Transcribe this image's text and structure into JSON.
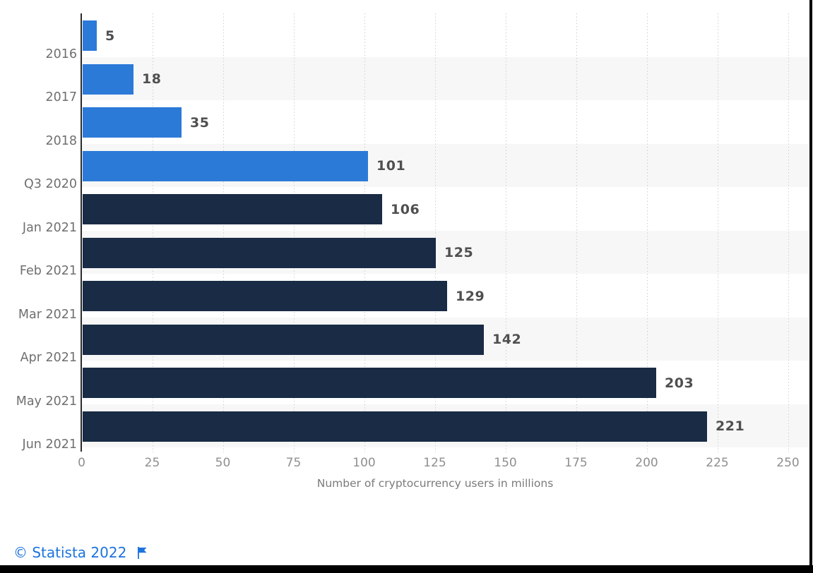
{
  "chart_data": {
    "type": "bar",
    "orientation": "horizontal",
    "title": "",
    "xlabel": "Number of cryptocurrency users in millions",
    "ylabel": "",
    "categories": [
      "2016",
      "2017",
      "2018",
      "Q3 2020",
      "Jan 2021",
      "Feb 2021",
      "Mar 2021",
      "Apr 2021",
      "May 2021",
      "Jun 2021"
    ],
    "values": [
      5,
      18,
      35,
      101,
      106,
      125,
      129,
      142,
      203,
      221
    ],
    "bar_colors": [
      "#2C7AD8",
      "#2C7AD8",
      "#2C7AD8",
      "#2C7AD8",
      "#192B45",
      "#192B45",
      "#192B45",
      "#192B45",
      "#192B45",
      "#192B45"
    ],
    "xlim": [
      0,
      250
    ],
    "x_ticks": [
      0,
      25,
      50,
      75,
      100,
      125,
      150,
      175,
      200,
      225,
      250
    ],
    "gridlines": "vertical-dotted",
    "row_striping": true,
    "legend": "none",
    "value_labels": "outside-end"
  },
  "footer": {
    "attribution": "© Statista 2022",
    "flag_icon": "flag"
  },
  "colors": {
    "bar_light_blue": "#2C7AD8",
    "bar_dark_navy": "#192B45",
    "row_stripe": "#F7F7F7",
    "row_plain": "#FFFFFF",
    "gridline": "#CFCFCF",
    "axis_line": "#2A2A2A",
    "category_label": "#6F6F6F",
    "value_label": "#4F4F4F",
    "tick_label": "#8F8F8F",
    "axis_title": "#7B7B7B",
    "attribution_blue": "#1C73DD",
    "frame_border": "#000000"
  }
}
